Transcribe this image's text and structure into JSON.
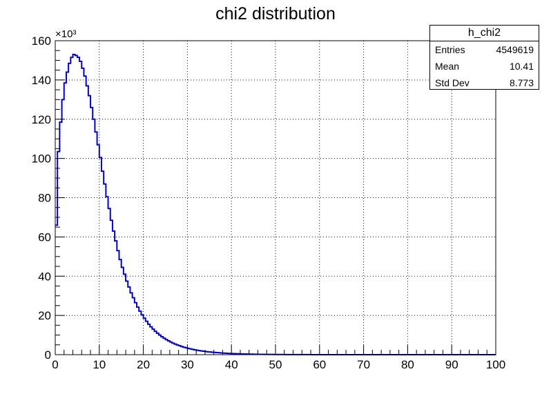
{
  "chart_data": {
    "type": "histogram",
    "title": "chi2 distribution",
    "xlabel": "",
    "ylabel": "",
    "xlim": [
      0,
      100
    ],
    "ylim": [
      0,
      160000
    ],
    "y_multiplier_label": "×10³",
    "xticks": [
      "0",
      "10",
      "20",
      "30",
      "40",
      "50",
      "60",
      "70",
      "80",
      "90",
      "100"
    ],
    "yticks": [
      "0",
      "20",
      "40",
      "60",
      "80",
      "100",
      "120",
      "140",
      "160"
    ],
    "grid": true,
    "line_color": "#0000cc",
    "bin_width": 0.5,
    "values": [
      66000,
      103500,
      118500,
      130000,
      138500,
      144000,
      148500,
      151500,
      153000,
      152500,
      151500,
      149500,
      146000,
      142000,
      137000,
      132000,
      126000,
      120000,
      113500,
      107000,
      100500,
      93500,
      87000,
      80500,
      74500,
      68500,
      63000,
      58000,
      53000,
      48500,
      44500,
      41000,
      37500,
      34500,
      31500,
      29000,
      26500,
      24200,
      22200,
      20300,
      18600,
      17000,
      15500,
      14200,
      13000,
      11900,
      10900,
      10000,
      9150,
      8400,
      7700,
      7050,
      6450,
      5900,
      5400,
      4950,
      4550,
      4150,
      3800,
      3500,
      3200,
      2950,
      2700,
      2450,
      2250,
      2050,
      1900,
      1750,
      1600,
      1450,
      1350,
      1250,
      1150,
      1050,
      950,
      870,
      800,
      730,
      670,
      610,
      560,
      510,
      470,
      430,
      390,
      360,
      330,
      300,
      275,
      250,
      230,
      210,
      190,
      175,
      160,
      145,
      132,
      120,
      110,
      100,
      92,
      84,
      77,
      70,
      64,
      58,
      53,
      48,
      44,
      40,
      36,
      33,
      30,
      27,
      25,
      23,
      21,
      19,
      17,
      15,
      14,
      13,
      12,
      11,
      10,
      9,
      8,
      7,
      6,
      5
    ],
    "stats_box": {
      "name": "h_chi2",
      "rows": [
        {
          "label": "Entries",
          "value": "4549619"
        },
        {
          "label": "Mean",
          "value": "10.41"
        },
        {
          "label": "Std Dev",
          "value": "8.773"
        }
      ]
    }
  }
}
